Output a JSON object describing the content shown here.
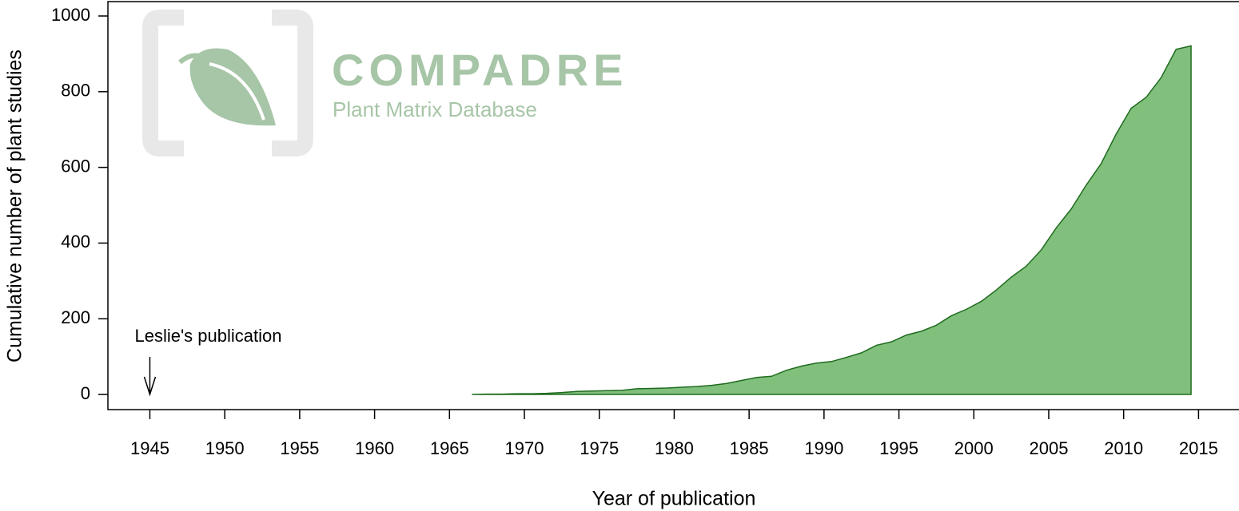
{
  "chart_data": {
    "type": "area",
    "x_label": "Year of publication",
    "y_label": "Cumulative number of plant studies",
    "watermark": {
      "title": "COMPADRE",
      "subtitle": "Plant Matrix Database"
    },
    "annotation": {
      "text": "Leslie's publication",
      "x": 1945
    },
    "x": [
      1966.5,
      1967.5,
      1968.5,
      1969.5,
      1970.5,
      1971.5,
      1972.5,
      1973.5,
      1974.5,
      1975.5,
      1976.5,
      1977.5,
      1978.5,
      1979.5,
      1980.5,
      1981.5,
      1982.5,
      1983.5,
      1984.5,
      1985.5,
      1986.5,
      1987.5,
      1988.5,
      1989.5,
      1990.5,
      1991.5,
      1992.5,
      1993.5,
      1994.5,
      1995.5,
      1996.5,
      1997.5,
      1998.5,
      1999.5,
      2000.5,
      2001.5,
      2002.5,
      2003.5,
      2004.5,
      2005.5,
      2006.5,
      2007.5,
      2008.5,
      2009.5,
      2010.5,
      2011.5,
      2012.5,
      2013.5,
      2014.5
    ],
    "values": [
      0,
      1,
      1,
      2,
      2,
      3,
      5,
      8,
      9,
      10,
      11,
      15,
      16,
      17,
      19,
      21,
      24,
      29,
      37,
      45,
      48,
      64,
      75,
      83,
      87,
      98,
      110,
      130,
      139,
      157,
      167,
      183,
      208,
      225,
      246,
      276,
      310,
      339,
      382,
      440,
      490,
      553,
      610,
      688,
      756,
      785,
      837,
      912,
      921
    ],
    "color": "#80c07c",
    "line_color": "#1f6b1f",
    "xlim": [
      1942.2,
      2017.7
    ],
    "ylim": [
      -40,
      1038
    ],
    "xticks": [
      1945,
      1950,
      1955,
      1960,
      1965,
      1970,
      1975,
      1980,
      1985,
      1990,
      1995,
      2000,
      2005,
      2010,
      2015
    ],
    "yticks": [
      0,
      200,
      400,
      600,
      800,
      1000
    ]
  }
}
